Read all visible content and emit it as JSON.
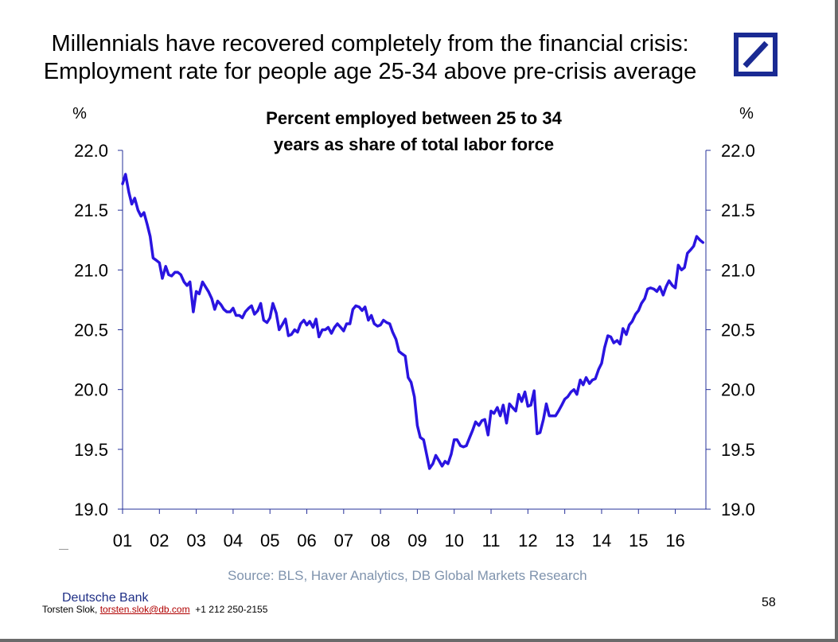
{
  "slide": {
    "title_line1": "Millennials have recovered completely from the financial crisis:",
    "title_line2": "Employment rate for people age 25-34 above pre-crisis average",
    "source": "Source: BLS, Haver Analytics, DB Global Markets Research",
    "brand": "Deutsche Bank",
    "author": "Torsten Slok, ",
    "email": "torsten.slok@db.com",
    "phone": "+1 212 250-2155",
    "page_number": "58"
  },
  "colors": {
    "series": "#2a14e0",
    "logo": "#1a2a93",
    "source_text": "#7f93ad"
  },
  "icons": {
    "logo": "deutsche-bank-logo-icon"
  },
  "chart_data": {
    "type": "line",
    "title_line1": "Percent employed between 25 to 34",
    "title_line2": "years as share of total labor force",
    "ylabel_left": "%",
    "ylabel_right": "%",
    "ylim": [
      19.0,
      22.0
    ],
    "yticks": [
      "22.0",
      "21.5",
      "21.0",
      "20.5",
      "20.0",
      "19.5",
      "19.0"
    ],
    "xlim": [
      2001,
      2016.83
    ],
    "xticks": [
      "01",
      "02",
      "03",
      "04",
      "05",
      "06",
      "07",
      "08",
      "09",
      "10",
      "11",
      "12",
      "13",
      "14",
      "15",
      "16"
    ],
    "grid": false,
    "series": [
      {
        "values": [
          [
            2001.0,
            21.72
          ],
          [
            2001.08,
            21.8
          ],
          [
            2001.17,
            21.65
          ],
          [
            2001.25,
            21.55
          ],
          [
            2001.33,
            21.6
          ],
          [
            2001.42,
            21.5
          ],
          [
            2001.5,
            21.45
          ],
          [
            2001.58,
            21.48
          ],
          [
            2001.67,
            21.38
          ],
          [
            2001.75,
            21.28
          ],
          [
            2001.83,
            21.1
          ],
          [
            2001.92,
            21.08
          ],
          [
            2002.0,
            21.06
          ],
          [
            2002.08,
            20.93
          ],
          [
            2002.17,
            21.03
          ],
          [
            2002.25,
            20.96
          ],
          [
            2002.33,
            20.95
          ],
          [
            2002.42,
            20.98
          ],
          [
            2002.5,
            20.98
          ],
          [
            2002.58,
            20.96
          ],
          [
            2002.67,
            20.9
          ],
          [
            2002.75,
            20.87
          ],
          [
            2002.83,
            20.9
          ],
          [
            2002.92,
            20.65
          ],
          [
            2003.0,
            20.82
          ],
          [
            2003.08,
            20.8
          ],
          [
            2003.17,
            20.9
          ],
          [
            2003.25,
            20.86
          ],
          [
            2003.33,
            20.82
          ],
          [
            2003.42,
            20.76
          ],
          [
            2003.5,
            20.67
          ],
          [
            2003.58,
            20.74
          ],
          [
            2003.67,
            20.71
          ],
          [
            2003.75,
            20.67
          ],
          [
            2003.83,
            20.65
          ],
          [
            2003.92,
            20.65
          ],
          [
            2004.0,
            20.68
          ],
          [
            2004.08,
            20.62
          ],
          [
            2004.17,
            20.62
          ],
          [
            2004.25,
            20.6
          ],
          [
            2004.33,
            20.65
          ],
          [
            2004.42,
            20.68
          ],
          [
            2004.5,
            20.7
          ],
          [
            2004.58,
            20.63
          ],
          [
            2004.67,
            20.66
          ],
          [
            2004.75,
            20.72
          ],
          [
            2004.83,
            20.58
          ],
          [
            2004.92,
            20.56
          ],
          [
            2005.0,
            20.6
          ],
          [
            2005.08,
            20.72
          ],
          [
            2005.17,
            20.64
          ],
          [
            2005.25,
            20.5
          ],
          [
            2005.33,
            20.54
          ],
          [
            2005.42,
            20.59
          ],
          [
            2005.5,
            20.45
          ],
          [
            2005.58,
            20.46
          ],
          [
            2005.67,
            20.5
          ],
          [
            2005.75,
            20.48
          ],
          [
            2005.83,
            20.55
          ],
          [
            2005.92,
            20.58
          ],
          [
            2006.0,
            20.54
          ],
          [
            2006.08,
            20.57
          ],
          [
            2006.17,
            20.52
          ],
          [
            2006.25,
            20.59
          ],
          [
            2006.33,
            20.44
          ],
          [
            2006.42,
            20.5
          ],
          [
            2006.5,
            20.5
          ],
          [
            2006.58,
            20.52
          ],
          [
            2006.67,
            20.47
          ],
          [
            2006.75,
            20.52
          ],
          [
            2006.83,
            20.55
          ],
          [
            2006.92,
            20.52
          ],
          [
            2007.0,
            20.49
          ],
          [
            2007.08,
            20.55
          ],
          [
            2007.17,
            20.55
          ],
          [
            2007.25,
            20.67
          ],
          [
            2007.33,
            20.7
          ],
          [
            2007.42,
            20.69
          ],
          [
            2007.5,
            20.66
          ],
          [
            2007.58,
            20.69
          ],
          [
            2007.67,
            20.58
          ],
          [
            2007.75,
            20.62
          ],
          [
            2007.83,
            20.55
          ],
          [
            2007.92,
            20.53
          ],
          [
            2008.0,
            20.54
          ],
          [
            2008.08,
            20.58
          ],
          [
            2008.17,
            20.56
          ],
          [
            2008.25,
            20.55
          ],
          [
            2008.33,
            20.48
          ],
          [
            2008.42,
            20.42
          ],
          [
            2008.5,
            20.32
          ],
          [
            2008.58,
            20.3
          ],
          [
            2008.67,
            20.28
          ],
          [
            2008.75,
            20.1
          ],
          [
            2008.83,
            20.06
          ],
          [
            2008.92,
            19.94
          ],
          [
            2009.0,
            19.7
          ],
          [
            2009.08,
            19.6
          ],
          [
            2009.17,
            19.58
          ],
          [
            2009.25,
            19.46
          ],
          [
            2009.33,
            19.34
          ],
          [
            2009.42,
            19.38
          ],
          [
            2009.5,
            19.45
          ],
          [
            2009.58,
            19.41
          ],
          [
            2009.67,
            19.36
          ],
          [
            2009.75,
            19.4
          ],
          [
            2009.83,
            19.38
          ],
          [
            2009.92,
            19.46
          ],
          [
            2010.0,
            19.58
          ],
          [
            2010.08,
            19.58
          ],
          [
            2010.17,
            19.53
          ],
          [
            2010.25,
            19.52
          ],
          [
            2010.33,
            19.53
          ],
          [
            2010.42,
            19.6
          ],
          [
            2010.5,
            19.66
          ],
          [
            2010.58,
            19.73
          ],
          [
            2010.67,
            19.7
          ],
          [
            2010.75,
            19.74
          ],
          [
            2010.83,
            19.75
          ],
          [
            2010.92,
            19.62
          ],
          [
            2011.0,
            19.82
          ],
          [
            2011.08,
            19.8
          ],
          [
            2011.17,
            19.85
          ],
          [
            2011.25,
            19.78
          ],
          [
            2011.33,
            19.87
          ],
          [
            2011.42,
            19.72
          ],
          [
            2011.5,
            19.88
          ],
          [
            2011.58,
            19.85
          ],
          [
            2011.67,
            19.82
          ],
          [
            2011.75,
            19.96
          ],
          [
            2011.83,
            19.9
          ],
          [
            2011.92,
            19.98
          ],
          [
            2012.0,
            19.86
          ],
          [
            2012.08,
            19.87
          ],
          [
            2012.17,
            19.99
          ],
          [
            2012.25,
            19.63
          ],
          [
            2012.33,
            19.64
          ],
          [
            2012.42,
            19.75
          ],
          [
            2012.5,
            19.88
          ],
          [
            2012.58,
            19.78
          ],
          [
            2012.67,
            19.78
          ],
          [
            2012.75,
            19.78
          ],
          [
            2012.83,
            19.82
          ],
          [
            2012.92,
            19.87
          ],
          [
            2013.0,
            19.92
          ],
          [
            2013.08,
            19.94
          ],
          [
            2013.17,
            19.98
          ],
          [
            2013.25,
            20.0
          ],
          [
            2013.33,
            19.96
          ],
          [
            2013.42,
            20.08
          ],
          [
            2013.5,
            20.04
          ],
          [
            2013.58,
            20.1
          ],
          [
            2013.67,
            20.05
          ],
          [
            2013.75,
            20.08
          ],
          [
            2013.83,
            20.09
          ],
          [
            2013.92,
            20.17
          ],
          [
            2014.0,
            20.22
          ],
          [
            2014.08,
            20.35
          ],
          [
            2014.17,
            20.45
          ],
          [
            2014.25,
            20.44
          ],
          [
            2014.33,
            20.39
          ],
          [
            2014.42,
            20.41
          ],
          [
            2014.5,
            20.38
          ],
          [
            2014.58,
            20.51
          ],
          [
            2014.67,
            20.46
          ],
          [
            2014.75,
            20.54
          ],
          [
            2014.83,
            20.57
          ],
          [
            2014.92,
            20.63
          ],
          [
            2015.0,
            20.66
          ],
          [
            2015.08,
            20.72
          ],
          [
            2015.17,
            20.76
          ],
          [
            2015.25,
            20.84
          ],
          [
            2015.33,
            20.85
          ],
          [
            2015.42,
            20.84
          ],
          [
            2015.5,
            20.82
          ],
          [
            2015.58,
            20.86
          ],
          [
            2015.67,
            20.79
          ],
          [
            2015.75,
            20.86
          ],
          [
            2015.83,
            20.91
          ],
          [
            2015.92,
            20.87
          ],
          [
            2016.0,
            20.85
          ],
          [
            2016.08,
            21.04
          ],
          [
            2016.17,
            21.0
          ],
          [
            2016.25,
            21.02
          ],
          [
            2016.33,
            21.14
          ],
          [
            2016.42,
            21.17
          ],
          [
            2016.5,
            21.2
          ],
          [
            2016.58,
            21.28
          ],
          [
            2016.67,
            21.25
          ],
          [
            2016.75,
            21.23
          ]
        ]
      }
    ]
  }
}
